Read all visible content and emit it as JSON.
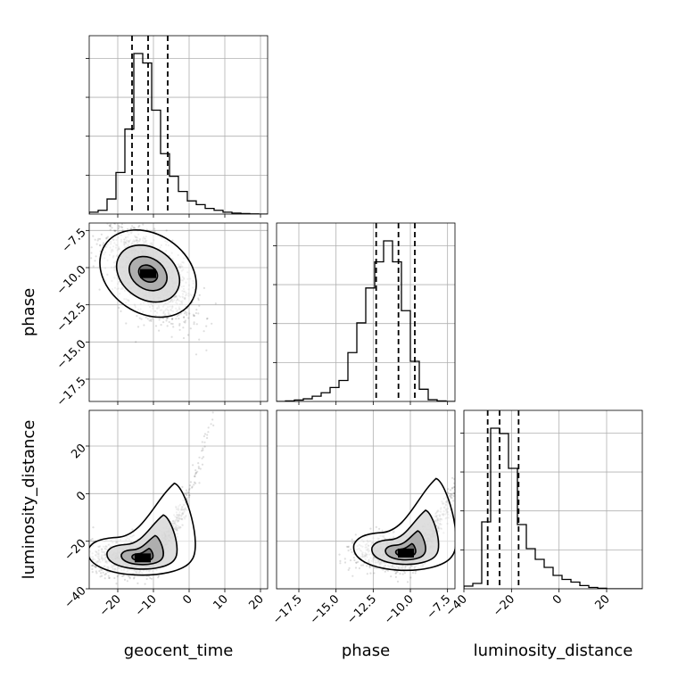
{
  "chart_data": {
    "type": "corner",
    "parameters": [
      "geocent_time",
      "phase",
      "luminosity_distance"
    ],
    "grid": true,
    "axes": {
      "geocent_time": {
        "xlim": [
          -28,
          22
        ],
        "ticks": [
          -20,
          -10,
          0,
          10,
          20
        ],
        "tick_labels": [
          "−20",
          "−10",
          "0",
          "10",
          "20"
        ],
        "xlabel": "geocent_time"
      },
      "phase": {
        "xlim": [
          -19,
          -7
        ],
        "ticks": [
          -17.5,
          -15.0,
          -12.5,
          -10.0,
          -7.5
        ],
        "tick_labels": [
          "−17.5",
          "−15.0",
          "−12.5",
          "−10.0",
          "−7.5"
        ],
        "xlabel": "phase",
        "ylabel": "phase"
      },
      "luminosity_distance": {
        "xlim": [
          -40,
          35
        ],
        "ticks": [
          -40,
          -20,
          0,
          20
        ],
        "tick_labels": [
          "−40",
          "−20",
          "0",
          "20"
        ],
        "xlabel": "luminosity_distance",
        "ylabel": "luminosity_distance"
      }
    },
    "histograms": [
      {
        "parameter": "geocent_time",
        "bins_start": -28,
        "bin_width": 2.5,
        "counts": [
          1,
          2,
          8,
          22,
          45,
          85,
          80,
          55,
          32,
          20,
          12,
          7,
          5,
          3,
          2,
          1,
          0.5,
          0.3,
          0.1,
          0
        ],
        "quantiles": [
          -16,
          -11.5,
          -6
        ]
      },
      {
        "parameter": "phase",
        "bins_start": -19,
        "bin_width": 0.6,
        "counts": [
          0,
          0.3,
          0.8,
          1.5,
          3,
          5,
          8,
          12,
          28,
          45,
          65,
          80,
          92,
          80,
          52,
          23,
          7,
          1,
          0.3,
          0
        ],
        "quantiles": [
          -12.3,
          -10.8,
          -9.7
        ]
      },
      {
        "parameter": "luminosity_distance",
        "bins_start": -40,
        "bin_width": 3.75,
        "counts": [
          1,
          2,
          25,
          60,
          58,
          45,
          24,
          15,
          11,
          8,
          5,
          3.5,
          2.5,
          1.2,
          0.5,
          0.2,
          0,
          0,
          0,
          0
        ],
        "quantiles": [
          -30,
          -25,
          -17
        ]
      }
    ],
    "pairs": [
      {
        "x": "geocent_time",
        "y": "phase",
        "center": [
          -11.5,
          -10.4
        ],
        "sigma": [
          6,
          1.6
        ],
        "rho": -0.6,
        "samples": 1500
      },
      {
        "x": "geocent_time",
        "y": "luminosity_distance",
        "center": [
          -13,
          -27
        ],
        "sigma": [
          7,
          8
        ],
        "skew": 1.1,
        "samples": 1500
      },
      {
        "x": "phase",
        "y": "luminosity_distance",
        "center": [
          -10.3,
          -25
        ],
        "sigma": [
          1.6,
          8
        ],
        "skew": 0.9,
        "samples": 1500
      }
    ]
  }
}
